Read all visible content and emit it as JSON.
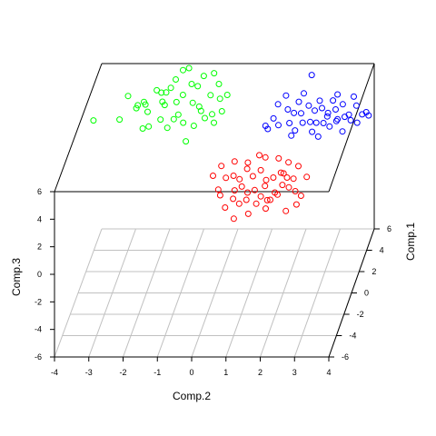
{
  "chart_data": {
    "type": "scatter",
    "projection": "3d",
    "xlabel": "Comp.2",
    "ylabel": "Comp.1",
    "zlabel": "Comp.3",
    "xlim": [
      -4,
      4
    ],
    "ylim": [
      -6,
      6
    ],
    "zlim": [
      -6,
      6
    ],
    "x_ticks": [
      "-4",
      "-3",
      "-2",
      "-1",
      "0",
      "1",
      "2",
      "3",
      "4"
    ],
    "y_ticks": [
      "-6",
      "-4",
      "-2",
      "0",
      "2",
      "4",
      "6"
    ],
    "z_ticks": [
      "-6",
      "-4",
      "-2",
      "0",
      "2",
      "4",
      "6"
    ],
    "grid": true,
    "legend": "none",
    "series": [
      {
        "color": "#00ff00",
        "points": [
          [
            -3.1,
            4.9,
            4.5
          ],
          [
            -2.8,
            4.4,
            4.0
          ],
          [
            -2.6,
            4.6,
            4.3
          ],
          [
            -2.5,
            4.1,
            4.5
          ],
          [
            -2.4,
            3.8,
            4.2
          ],
          [
            -2.3,
            3.2,
            3.6
          ],
          [
            -2.2,
            4.4,
            5.3
          ],
          [
            -2.0,
            4.1,
            4.7
          ],
          [
            -2.0,
            3.6,
            3.8
          ],
          [
            -1.9,
            4.2,
            5.3
          ],
          [
            -1.8,
            4.5,
            5.4
          ],
          [
            -1.7,
            4.9,
            5.7
          ],
          [
            -1.6,
            4.2,
            4.6
          ],
          [
            -1.5,
            3.8,
            4.0
          ],
          [
            -1.4,
            4.1,
            5.2
          ],
          [
            -1.3,
            3.3,
            3.8
          ],
          [
            -1.2,
            4.6,
            5.6
          ],
          [
            -1.1,
            4.0,
            4.7
          ],
          [
            -1.0,
            4.4,
            5.6
          ],
          [
            -0.9,
            3.9,
            4.5
          ],
          [
            -0.8,
            3.5,
            4.5
          ],
          [
            -0.7,
            3.6,
            3.9
          ],
          [
            -0.6,
            4.2,
            5.1
          ],
          [
            -0.5,
            3.7,
            4.1
          ],
          [
            -0.4,
            3.3,
            3.8
          ],
          [
            -0.3,
            4.0,
            5.0
          ],
          [
            -0.2,
            3.6,
            4.4
          ],
          [
            -1.8,
            3.6,
            3.2
          ],
          [
            -2.5,
            3.4,
            3.3
          ],
          [
            -1.2,
            3.1,
            2.6
          ],
          [
            -0.9,
            5.1,
            5.8
          ],
          [
            -2.1,
            4.7,
            4.9
          ],
          [
            -1.5,
            5.0,
            6.3
          ],
          [
            -1.3,
            4.8,
            6.6
          ],
          [
            -0.6,
            5.1,
            6.0
          ],
          [
            -0.1,
            4.1,
            5.2
          ],
          [
            -2.7,
            3.9,
            4.6
          ],
          [
            -1.9,
            3.8,
            4.7
          ],
          [
            -1.0,
            3.4,
            3.5
          ],
          [
            -0.4,
            4.6,
            5.6
          ],
          [
            -1.6,
            3.5,
            3.9
          ],
          [
            -3.2,
            3.6,
            3.8
          ],
          [
            -4.0,
            3.9,
            3.5
          ]
        ]
      },
      {
        "color": "#ff0000",
        "points": [
          [
            -0.2,
            1.3,
            1.5
          ],
          [
            0.0,
            0.9,
            0.8
          ],
          [
            0.2,
            1.1,
            1.5
          ],
          [
            0.4,
            1.3,
            1.5
          ],
          [
            0.5,
            0.7,
            0.9
          ],
          [
            0.6,
            1.1,
            1.4
          ],
          [
            0.7,
            0.8,
            1.1
          ],
          [
            0.8,
            1.3,
            2.0
          ],
          [
            0.9,
            0.5,
            0.9
          ],
          [
            1.0,
            1.0,
            1.7
          ],
          [
            1.1,
            0.6,
            1.0
          ],
          [
            1.2,
            1.3,
            1.9
          ],
          [
            1.3,
            0.4,
            0.7
          ],
          [
            1.4,
            0.9,
            1.5
          ],
          [
            1.5,
            0.3,
            0.5
          ],
          [
            1.6,
            1.0,
            1.6
          ],
          [
            1.7,
            0.5,
            0.9
          ],
          [
            1.8,
            1.2,
            1.8
          ],
          [
            1.9,
            0.7,
            1.3
          ],
          [
            2.0,
            1.0,
            1.6
          ],
          [
            2.1,
            0.6,
            1.2
          ],
          [
            2.2,
            0.9,
            1.6
          ],
          [
            2.3,
            0.5,
            1.0
          ],
          [
            0.3,
            0.0,
            0.2
          ],
          [
            0.6,
            -0.4,
            -0.3
          ],
          [
            0.9,
            0.2,
            0.6
          ],
          [
            1.2,
            0.1,
            0.4
          ],
          [
            1.5,
            -0.1,
            0.2
          ],
          [
            1.8,
            0.3,
            0.9
          ],
          [
            2.1,
            -0.2,
            0.1
          ],
          [
            0.4,
            1.6,
            2.3
          ],
          [
            0.8,
            1.5,
            2.3
          ],
          [
            1.3,
            1.6,
            2.6
          ],
          [
            1.7,
            1.5,
            2.6
          ],
          [
            2.0,
            1.4,
            2.4
          ],
          [
            0.1,
            0.5,
            0.7
          ],
          [
            0.5,
            0.3,
            0.6
          ],
          [
            1.0,
            -0.2,
            -0.1
          ],
          [
            1.4,
            0.6,
            1.3
          ],
          [
            2.3,
            1.3,
            2.2
          ],
          [
            2.5,
            0.2,
            0.9
          ],
          [
            0.0,
            1.7,
            1.9
          ],
          [
            1.1,
            1.8,
            2.6
          ],
          [
            1.6,
            0.2,
            0.6
          ],
          [
            0.7,
            0.1,
            0.4
          ],
          [
            1.9,
            1.0,
            1.9
          ],
          [
            2.6,
            0.8,
            1.8
          ],
          [
            2.4,
            -0.1,
            0.5
          ]
        ]
      },
      {
        "color": "#0000ff",
        "points": [
          [
            1.0,
            4.3,
            2.8
          ],
          [
            1.2,
            4.6,
            3.1
          ],
          [
            1.4,
            4.1,
            3.0
          ],
          [
            1.6,
            4.8,
            3.6
          ],
          [
            1.7,
            4.3,
            3.0
          ],
          [
            1.8,
            4.6,
            3.5
          ],
          [
            1.9,
            4.0,
            2.7
          ],
          [
            2.0,
            4.7,
            3.4
          ],
          [
            2.1,
            4.2,
            3.1
          ],
          [
            2.2,
            4.9,
            3.8
          ],
          [
            2.3,
            4.4,
            3.0
          ],
          [
            2.4,
            4.7,
            3.6
          ],
          [
            2.5,
            4.2,
            3.1
          ],
          [
            2.6,
            4.8,
            3.7
          ],
          [
            2.7,
            4.3,
            3.0
          ],
          [
            2.8,
            4.6,
            3.5
          ],
          [
            2.9,
            4.1,
            2.9
          ],
          [
            3.0,
            4.8,
            3.6
          ],
          [
            3.1,
            4.4,
            3.2
          ],
          [
            3.2,
            4.9,
            3.9
          ],
          [
            3.3,
            4.5,
            3.3
          ],
          [
            3.4,
            4.7,
            3.3
          ],
          [
            3.5,
            4.3,
            3.2
          ],
          [
            3.6,
            4.9,
            3.8
          ],
          [
            3.8,
            4.6,
            3.4
          ],
          [
            4.0,
            4.5,
            3.4
          ],
          [
            1.5,
            5.2,
            4.3
          ],
          [
            2.0,
            5.4,
            4.3
          ],
          [
            2.5,
            5.1,
            4.0
          ],
          [
            3.0,
            5.3,
            4.3
          ],
          [
            1.8,
            3.9,
            2.4
          ],
          [
            2.6,
            3.8,
            2.4
          ],
          [
            3.3,
            3.9,
            2.7
          ],
          [
            2.2,
            5.7,
            5.4
          ],
          [
            3.7,
            4.2,
            3.1
          ],
          [
            1.3,
            4.9,
            3.9
          ],
          [
            2.9,
            5.0,
            4.1
          ],
          [
            3.5,
            5.1,
            4.3
          ],
          [
            1.1,
            4.0,
            2.8
          ],
          [
            2.4,
            4.0,
            2.6
          ],
          [
            3.1,
            4.1,
            3.3
          ],
          [
            1.9,
            5.0,
            4.0
          ],
          [
            2.8,
            4.4,
            3.4
          ],
          [
            3.9,
            4.8,
            3.4
          ]
        ]
      }
    ]
  }
}
